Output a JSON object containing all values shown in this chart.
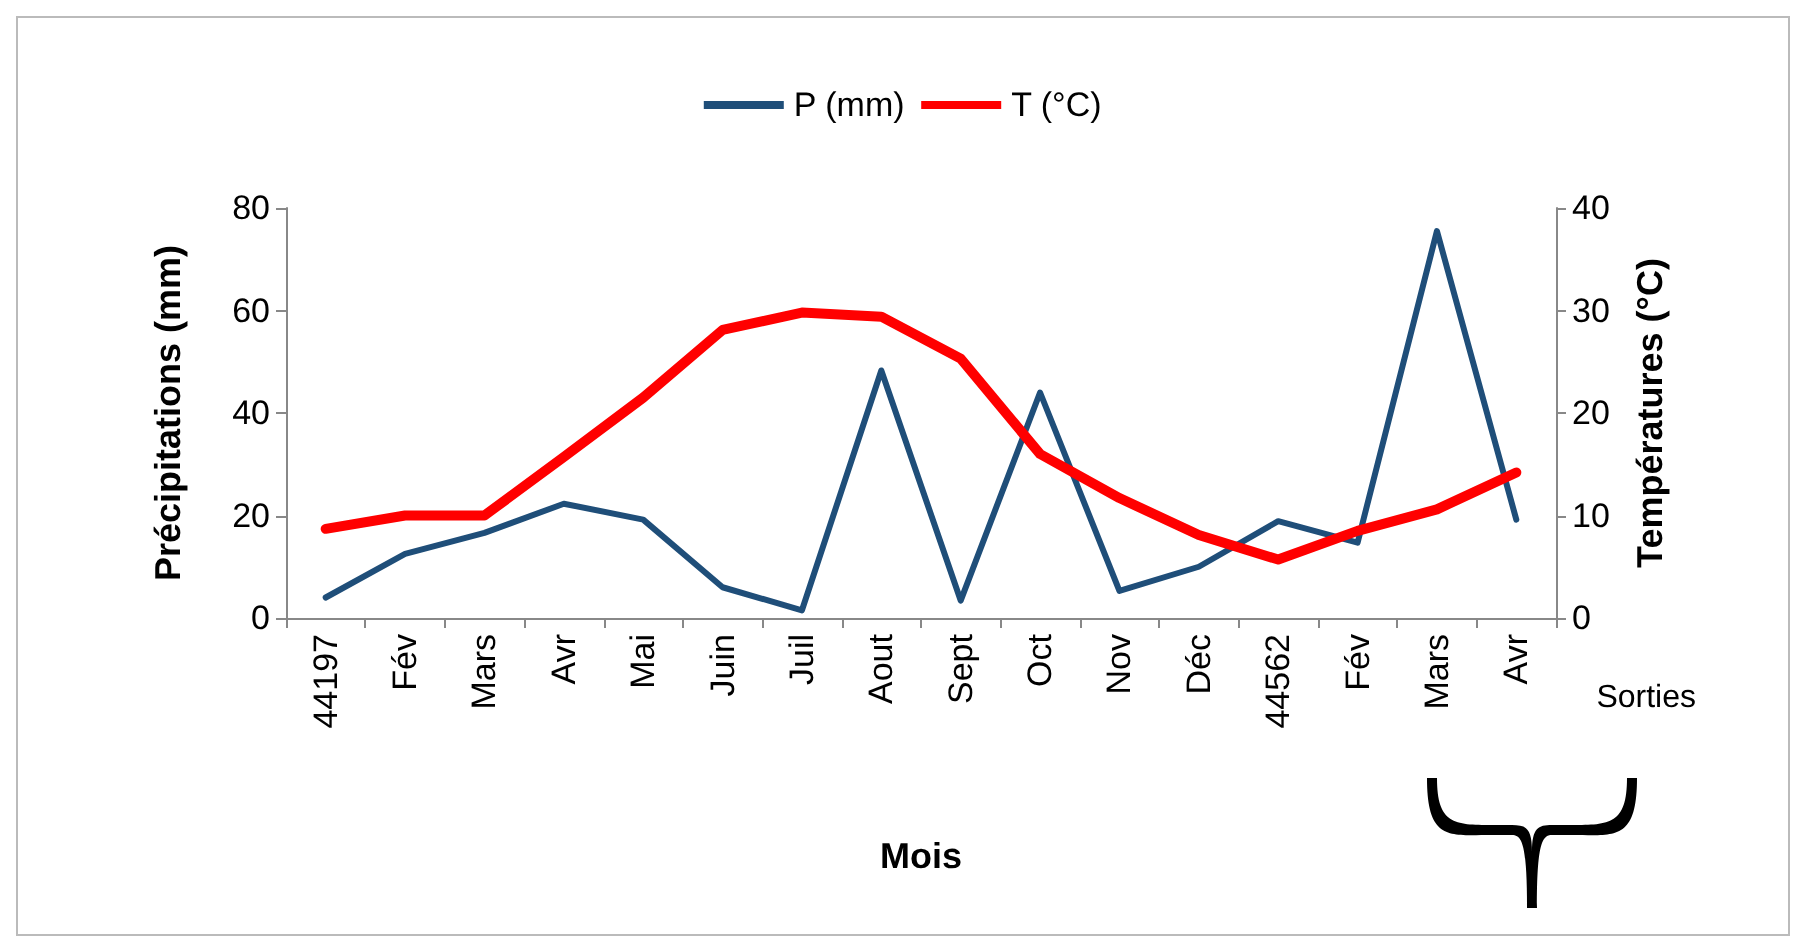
{
  "chart_data": {
    "type": "line",
    "xlabel": "Mois",
    "ylabel": "Précipitations (mm)",
    "y2label": "Températures (°C)",
    "categories": [
      "44197",
      "Fév",
      "Mars",
      "Avr",
      "Mai",
      "Juin",
      "Juil",
      "Aout",
      "Sept",
      "Oct",
      "Nov",
      "Déc",
      "44562",
      "Fév",
      "Mars",
      "Avr"
    ],
    "series": [
      {
        "name": "P (mm)",
        "color": "#1f4e79",
        "values": [
          4,
          12.5,
          16.6,
          22.3,
          19.2,
          6,
          1.5,
          48.3,
          3.4,
          44,
          5.3,
          10,
          18.9,
          14.7,
          75.5,
          19.2
        ]
      },
      {
        "name": "T (°C)",
        "color": "#ff0000",
        "axis": "y2",
        "values": [
          8.7,
          10,
          10,
          15.7,
          21.5,
          28.1,
          29.8,
          29.4,
          25.3,
          16,
          11.7,
          8.1,
          5.7,
          8.5,
          10.6,
          14.2
        ]
      }
    ],
    "ylim": [
      0,
      80
    ],
    "yticks": [
      0,
      20,
      40,
      60,
      80
    ],
    "y2lim": [
      0,
      40
    ],
    "y2ticks": [
      0,
      10,
      20,
      30,
      40
    ],
    "annotations": [
      "Sorties"
    ],
    "legend": "top",
    "grid": false,
    "marker": "none",
    "line_style": "solid"
  }
}
